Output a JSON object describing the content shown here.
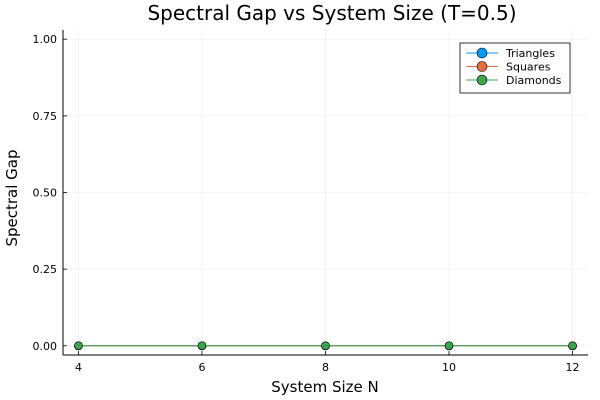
{
  "chart_data": {
    "type": "line",
    "title": "Spectral Gap vs System Size (T=0.5)",
    "xlabel": "System Size N",
    "ylabel": "Spectral Gap",
    "x": [
      4,
      6,
      8,
      10,
      12
    ],
    "xticks": [
      "4",
      "6",
      "8",
      "10",
      "12"
    ],
    "xlim": [
      3.75,
      12.25
    ],
    "yticks": [
      "0.00",
      "0.25",
      "0.50",
      "0.75",
      "1.00"
    ],
    "ylim": [
      -0.03,
      1.03
    ],
    "grid": true,
    "legend_position": "top-right",
    "series": [
      {
        "name": "Triangles",
        "color": "#009af9",
        "marker": "circle",
        "values": [
          0,
          0,
          0,
          0,
          0
        ]
      },
      {
        "name": "Squares",
        "color": "#e26f46",
        "marker": "circle",
        "values": [
          0,
          0,
          0,
          0,
          0
        ]
      },
      {
        "name": "Diamonds",
        "color": "#3da44d",
        "marker": "circle",
        "values": [
          0,
          0,
          0,
          0,
          0
        ]
      }
    ]
  }
}
